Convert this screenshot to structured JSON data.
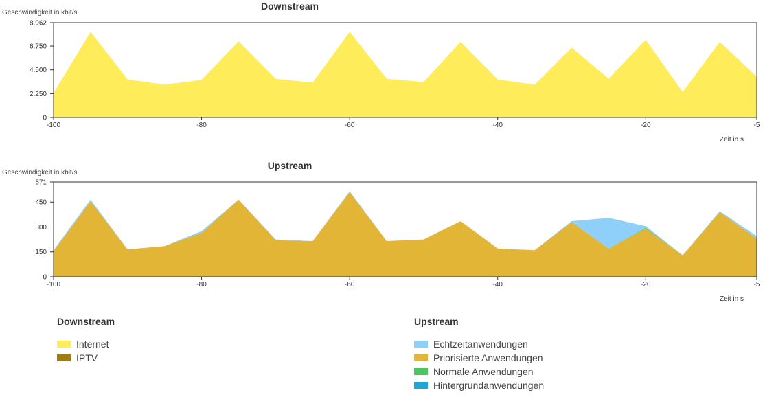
{
  "chart_data": [
    {
      "type": "area",
      "title": "Downstream",
      "ylabel": "Geschwindigkeit in kbit/s",
      "xlabel": "Zeit in s",
      "xlim": [
        -100,
        -5
      ],
      "ylim": [
        0,
        8962
      ],
      "yticks": [
        "0",
        "2.250",
        "4.500",
        "6.750",
        "8.962"
      ],
      "ytick_values": [
        0,
        2250,
        4500,
        6750,
        8962
      ],
      "xticks": [
        "-100",
        "-80",
        "-60",
        "-40",
        "-20",
        "-5"
      ],
      "xtick_values": [
        -100,
        -80,
        -60,
        -40,
        -20,
        -5
      ],
      "x": [
        -100,
        -95,
        -90,
        -85,
        -80,
        -75,
        -70,
        -65,
        -60,
        -55,
        -50,
        -45,
        -40,
        -35,
        -30,
        -25,
        -20,
        -15,
        -10,
        -5
      ],
      "series": [
        {
          "name": "Internet",
          "color": "#ffec5a",
          "values": [
            2300,
            8100,
            3600,
            3100,
            3550,
            7200,
            3650,
            3300,
            8100,
            3650,
            3350,
            7150,
            3600,
            3100,
            6600,
            3650,
            7350,
            2400,
            7150,
            3850
          ]
        },
        {
          "name": "IPTV",
          "color": "#a07b0f",
          "values": [
            0,
            0,
            0,
            0,
            0,
            0,
            0,
            0,
            0,
            0,
            0,
            0,
            0,
            0,
            0,
            0,
            0,
            0,
            0,
            0
          ]
        }
      ]
    },
    {
      "type": "area",
      "title": "Upstream",
      "ylabel": "Geschwindigkeit in kbit/s",
      "xlabel": "Zeit in s",
      "xlim": [
        -100,
        -5
      ],
      "ylim": [
        0,
        571
      ],
      "yticks": [
        "0",
        "150",
        "300",
        "450",
        "571"
      ],
      "ytick_values": [
        0,
        150,
        300,
        450,
        571
      ],
      "xticks": [
        "-100",
        "-80",
        "-60",
        "-40",
        "-20",
        "-5"
      ],
      "xtick_values": [
        -100,
        -80,
        -60,
        -40,
        -20,
        -5
      ],
      "x": [
        -100,
        -95,
        -90,
        -85,
        -80,
        -75,
        -70,
        -65,
        -60,
        -55,
        -50,
        -45,
        -40,
        -35,
        -30,
        -25,
        -20,
        -15,
        -10,
        -5
      ],
      "stacked": true,
      "series": [
        {
          "name": "Priorisierte Anwendungen",
          "color": "#e2b536",
          "values": [
            155,
            455,
            165,
            185,
            265,
            465,
            220,
            215,
            510,
            215,
            225,
            335,
            170,
            160,
            330,
            170,
            290,
            130,
            390,
            230
          ]
        },
        {
          "name": "Normale Anwendungen",
          "color": "#4fc463",
          "values": [
            0,
            0,
            0,
            0,
            0,
            0,
            0,
            0,
            0,
            0,
            0,
            0,
            0,
            0,
            0,
            0,
            5,
            0,
            0,
            0
          ]
        },
        {
          "name": "Hintergrundanwendungen",
          "color": "#20a6d4",
          "values": [
            0,
            0,
            0,
            0,
            0,
            0,
            0,
            0,
            0,
            0,
            0,
            0,
            0,
            0,
            0,
            0,
            0,
            0,
            0,
            0
          ]
        },
        {
          "name": "Echtzeitanwendungen",
          "color": "#8ed0fa",
          "values": [
            5,
            10,
            0,
            0,
            10,
            0,
            5,
            0,
            5,
            0,
            0,
            0,
            0,
            0,
            5,
            185,
            10,
            0,
            5,
            15
          ]
        }
      ]
    }
  ],
  "legend": {
    "downstream": {
      "title": "Downstream",
      "items": [
        {
          "label": "Internet",
          "color": "#ffec5a"
        },
        {
          "label": "IPTV",
          "color": "#a07b0f"
        }
      ]
    },
    "upstream": {
      "title": "Upstream",
      "items": [
        {
          "label": "Echtzeitanwendungen",
          "color": "#8ed0fa"
        },
        {
          "label": "Priorisierte Anwendungen",
          "color": "#e2b536"
        },
        {
          "label": "Normale Anwendungen",
          "color": "#4fc463"
        },
        {
          "label": "Hintergrundanwendungen",
          "color": "#20a6d4"
        }
      ]
    }
  }
}
